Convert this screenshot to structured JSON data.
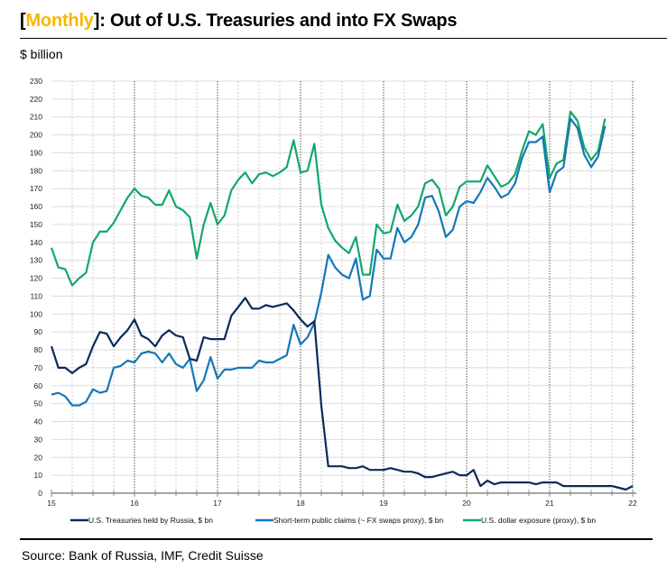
{
  "header": {
    "title_bracket_open": "[",
    "title_accent": "Monthly",
    "title_rest": "]: Out of U.S. Treasuries and into FX Swaps",
    "unit": "$ billion",
    "source": "Source: Bank of Russia, IMF, Credit Suisse"
  },
  "colors": {
    "accent": "#f5b800",
    "navy": "#0b2a5b",
    "blue": "#1577b8",
    "green": "#10a86a"
  },
  "chart_data": {
    "type": "line",
    "title": "[Monthly]: Out of U.S. Treasuries and into FX Swaps",
    "xlabel": "",
    "ylabel": "$ billion",
    "ylim": [
      0,
      230
    ],
    "yticks": [
      0,
      10,
      20,
      30,
      40,
      50,
      60,
      70,
      80,
      90,
      100,
      110,
      120,
      130,
      140,
      150,
      160,
      170,
      180,
      190,
      200,
      210,
      220,
      230
    ],
    "xlim": [
      2015,
      2022
    ],
    "xticks": [
      "15",
      "16",
      "17",
      "18",
      "19",
      "20",
      "21",
      "22"
    ],
    "x_start": "2015-01",
    "x_frequency": "monthly",
    "grid": true,
    "legend_position": "bottom",
    "series": [
      {
        "name": "U.S. Treasuries held by Russia, $ bn",
        "color": "#0b2a5b",
        "values": [
          82,
          70,
          70,
          67,
          70,
          72,
          82,
          90,
          89,
          82,
          87,
          91,
          97,
          88,
          86,
          82,
          88,
          91,
          88,
          87,
          75,
          74,
          87,
          86,
          86,
          86,
          99,
          104,
          109,
          103,
          103,
          105,
          104,
          105,
          106,
          102,
          97,
          93,
          96,
          49,
          15,
          15,
          15,
          14,
          14,
          15,
          13,
          13,
          13,
          14,
          13,
          12,
          12,
          11,
          9,
          9,
          10,
          11,
          12,
          10,
          10,
          13,
          4,
          7,
          5,
          6,
          6,
          6,
          6,
          6,
          5,
          6,
          6,
          6,
          4,
          4,
          4,
          4,
          4,
          4,
          4,
          4,
          3,
          2,
          4
        ]
      },
      {
        "name": "Short-term public claims (~ FX swaps proxy), $ bn",
        "color": "#1577b8",
        "values": [
          55,
          56,
          54,
          49,
          49,
          51,
          58,
          56,
          57,
          70,
          71,
          74,
          73,
          78,
          79,
          78,
          73,
          78,
          72,
          70,
          75,
          57,
          63,
          76,
          64,
          69,
          69,
          70,
          70,
          70,
          74,
          73,
          73,
          75,
          77,
          94,
          83,
          87,
          95,
          112,
          133,
          126,
          122,
          120,
          131,
          108,
          110,
          136,
          131,
          131,
          148,
          140,
          143,
          150,
          165,
          166,
          157,
          143,
          147,
          160,
          163,
          162,
          168,
          176,
          171,
          165,
          167,
          173,
          187,
          196,
          196,
          199,
          168,
          179,
          182,
          209,
          204,
          189,
          182,
          188,
          205
        ]
      },
      {
        "name": "U.S. dollar exposure (proxy), $ bn",
        "color": "#10a86a",
        "values": [
          137,
          126,
          125,
          116,
          120,
          123,
          140,
          146,
          146,
          151,
          158,
          165,
          170,
          166,
          165,
          161,
          161,
          169,
          160,
          158,
          154,
          131,
          150,
          162,
          150,
          155,
          169,
          175,
          179,
          173,
          178,
          179,
          177,
          179,
          182,
          197,
          179,
          180,
          195,
          161,
          148,
          141,
          137,
          134,
          143,
          122,
          122,
          150,
          145,
          146,
          161,
          152,
          155,
          160,
          173,
          175,
          170,
          155,
          160,
          171,
          174,
          174,
          174,
          183,
          177,
          171,
          173,
          178,
          191,
          202,
          200,
          206,
          176,
          184,
          186,
          213,
          208,
          193,
          186,
          191,
          209
        ]
      }
    ]
  }
}
